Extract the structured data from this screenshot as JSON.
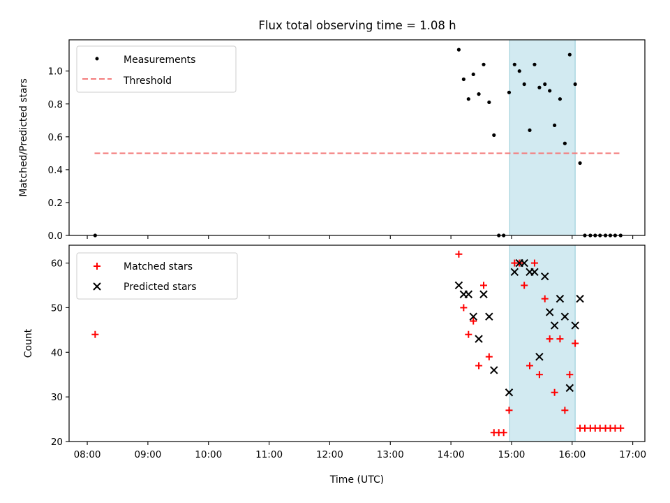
{
  "title": "Flux total observing time = 1.08 h",
  "colors": {
    "measurement": "#000000",
    "threshold": "#f47c7c",
    "matched": "#ff0000",
    "predicted": "#000000",
    "shade": "#add8e6"
  },
  "chart_data": [
    {
      "type": "scatter",
      "panel": "top",
      "ylabel": "Matched/Predicted stars",
      "xlabel": "",
      "xlim": [
        7.7,
        17.2
      ],
      "ylim": [
        0,
        1.19
      ],
      "x_tick_labels": [
        "08:00",
        "09:00",
        "10:00",
        "11:00",
        "12:00",
        "13:00",
        "14:00",
        "15:00",
        "16:00",
        "17:00"
      ],
      "x_tick_values": [
        8,
        9,
        10,
        11,
        12,
        13,
        14,
        15,
        16,
        17
      ],
      "y_ticks": [
        0.0,
        0.2,
        0.4,
        0.6,
        0.8,
        1.0
      ],
      "y_tick_labels": [
        "0.0",
        "0.2",
        "0.4",
        "0.6",
        "0.8",
        "1.0"
      ],
      "shaded_region": [
        14.97,
        16.05
      ],
      "legend": {
        "placement": "top-left",
        "entries": [
          "Measurements",
          "Threshold"
        ]
      },
      "threshold": {
        "name": "Threshold",
        "x": [
          8.12,
          16.82
        ],
        "y": 0.5
      },
      "series": [
        {
          "name": "Measurements",
          "marker": "dot",
          "x": [
            8.13,
            14.13,
            14.21,
            14.29,
            14.37,
            14.46,
            14.54,
            14.63,
            14.71,
            14.79,
            14.87,
            14.96,
            15.05,
            15.13,
            15.21,
            15.3,
            15.38,
            15.46,
            15.55,
            15.63,
            15.71,
            15.8,
            15.88,
            15.96,
            16.05,
            16.13,
            16.21,
            16.3,
            16.38,
            16.46,
            16.55,
            16.63,
            16.71,
            16.8
          ],
          "y": [
            0.0,
            1.13,
            0.95,
            0.83,
            0.98,
            0.86,
            1.04,
            0.81,
            0.61,
            0.0,
            0.0,
            0.87,
            1.04,
            1.0,
            0.92,
            0.64,
            1.04,
            0.9,
            0.92,
            0.88,
            0.67,
            0.83,
            0.56,
            1.1,
            0.92,
            0.44,
            0.0,
            0.0,
            0.0,
            0.0,
            0.0,
            0.0,
            0.0,
            0.0
          ]
        }
      ]
    },
    {
      "type": "scatter",
      "panel": "bottom",
      "xlabel": "Time (UTC)",
      "ylabel": "Count",
      "xlim": [
        7.7,
        17.2
      ],
      "ylim": [
        20,
        64
      ],
      "x_tick_labels": [
        "08:00",
        "09:00",
        "10:00",
        "11:00",
        "12:00",
        "13:00",
        "14:00",
        "15:00",
        "16:00",
        "17:00"
      ],
      "x_tick_values": [
        8,
        9,
        10,
        11,
        12,
        13,
        14,
        15,
        16,
        17
      ],
      "y_ticks": [
        20,
        30,
        40,
        50,
        60
      ],
      "y_tick_labels": [
        "20",
        "30",
        "40",
        "50",
        "60"
      ],
      "shaded_region": [
        14.97,
        16.05
      ],
      "legend": {
        "placement": "top-left",
        "entries": [
          "Matched stars",
          "Predicted stars"
        ]
      },
      "series": [
        {
          "name": "Matched stars",
          "marker": "plus",
          "x": [
            8.13,
            14.13,
            14.21,
            14.29,
            14.37,
            14.46,
            14.54,
            14.63,
            14.71,
            14.79,
            14.87,
            14.96,
            15.05,
            15.13,
            15.21,
            15.3,
            15.38,
            15.46,
            15.55,
            15.63,
            15.71,
            15.8,
            15.88,
            15.96,
            16.05,
            16.13,
            16.21,
            16.3,
            16.38,
            16.46,
            16.55,
            16.63,
            16.71,
            16.8
          ],
          "y": [
            44,
            62,
            50,
            44,
            47,
            37,
            55,
            39,
            22,
            22,
            22,
            27,
            60,
            60,
            55,
            37,
            60,
            35,
            52,
            43,
            31,
            43,
            27,
            35,
            42,
            23,
            23,
            23,
            23,
            23,
            23,
            23,
            23,
            23
          ]
        },
        {
          "name": "Predicted stars",
          "marker": "x",
          "x": [
            14.13,
            14.21,
            14.29,
            14.37,
            14.46,
            14.54,
            14.63,
            14.71,
            14.96,
            15.05,
            15.13,
            15.21,
            15.3,
            15.38,
            15.46,
            15.55,
            15.63,
            15.71,
            15.8,
            15.88,
            15.96,
            16.05,
            16.13
          ],
          "y": [
            55,
            53,
            53,
            48,
            43,
            53,
            48,
            36,
            31,
            58,
            60,
            60,
            58,
            58,
            39,
            57,
            49,
            46,
            52,
            48,
            32,
            46,
            52
          ]
        }
      ]
    }
  ]
}
